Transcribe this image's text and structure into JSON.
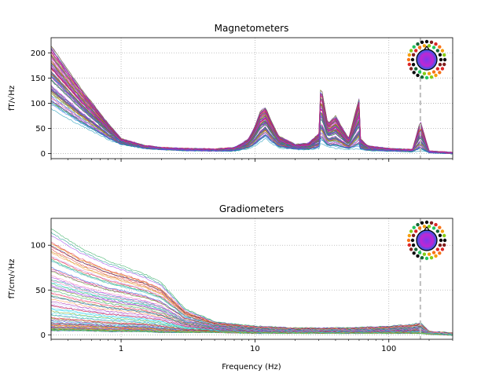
{
  "chart_data": [
    {
      "type": "line",
      "title": "Magnetometers",
      "xlabel": "",
      "ylabel": "fT/√Hz",
      "xscale": "log",
      "xlim": [
        0.3,
        300
      ],
      "ylim": [
        -10,
        230
      ],
      "yticks": [
        0,
        50,
        100,
        150,
        200
      ],
      "yticklabels": [
        "0",
        "50",
        "100",
        "150",
        "200"
      ],
      "xticks": [
        1,
        10,
        100
      ],
      "xticklabels": [],
      "grid": true,
      "vline_hz": 172,
      "num_channels": 102,
      "channel_colors": [
        "#a21caf",
        "#b91c5c",
        "#dc2626",
        "#ea580c",
        "#ca8a04",
        "#65a30d",
        "#16a34a",
        "#0d9488",
        "#0891b2",
        "#2563eb",
        "#4f46e5",
        "#7c3aed",
        "#9333ea",
        "#c026d3",
        "#e11d48"
      ],
      "envelope": {
        "x": [
          0.3,
          0.5,
          0.8,
          1.0,
          1.5,
          2,
          3,
          5,
          7,
          8,
          9,
          10,
          11,
          12,
          13,
          15,
          20,
          25,
          30,
          31,
          35,
          40,
          50,
          60,
          61,
          70,
          100,
          150,
          172,
          200,
          300
        ],
        "low": [
          88,
          55,
          28,
          18,
          10,
          8,
          6,
          5,
          5,
          8,
          10,
          15,
          22,
          30,
          22,
          12,
          8,
          8,
          10,
          20,
          12,
          10,
          8,
          8,
          8,
          6,
          5,
          4,
          5,
          2,
          0
        ],
        "high": [
          215,
          130,
          60,
          30,
          16,
          12,
          10,
          9,
          12,
          20,
          30,
          55,
          85,
          92,
          70,
          35,
          18,
          20,
          40,
          138,
          60,
          75,
          30,
          110,
          30,
          15,
          10,
          8,
          65,
          5,
          2
        ]
      }
    },
    {
      "type": "line",
      "title": "Gradiometers",
      "xlabel": "Frequency (Hz)",
      "ylabel": "fT/cm/√Hz",
      "xscale": "log",
      "xlim": [
        0.3,
        300
      ],
      "ylim": [
        -5,
        130
      ],
      "yticks": [
        0,
        50,
        100
      ],
      "yticklabels": [
        "0",
        "50",
        "100"
      ],
      "xticks": [
        1,
        10,
        100
      ],
      "xticklabels": [
        "1",
        "10",
        "100"
      ],
      "grid": true,
      "vline_hz": 172,
      "num_channels": 204,
      "channel_colors": [
        "#c4b5fd",
        "#f472b6",
        "#fb923c",
        "#4ade80",
        "#22d3ee",
        "#a21caf",
        "#dc2626",
        "#2563eb",
        "#16a34a",
        "#ca8a04",
        "#9333ea",
        "#0d9488",
        "#e11d48",
        "#65a30d",
        "#1e3a8a"
      ],
      "envelope": {
        "x": [
          0.3,
          0.5,
          0.8,
          1.0,
          1.5,
          2,
          3,
          5,
          10,
          20,
          50,
          100,
          150,
          172,
          200,
          300
        ],
        "low": [
          5,
          5,
          4,
          4,
          4,
          3,
          3,
          3,
          2,
          2,
          2,
          2,
          2,
          2,
          1,
          0
        ],
        "high": [
          122,
          100,
          85,
          80,
          70,
          60,
          30,
          15,
          10,
          8,
          8,
          10,
          12,
          14,
          4,
          2
        ]
      }
    }
  ]
}
